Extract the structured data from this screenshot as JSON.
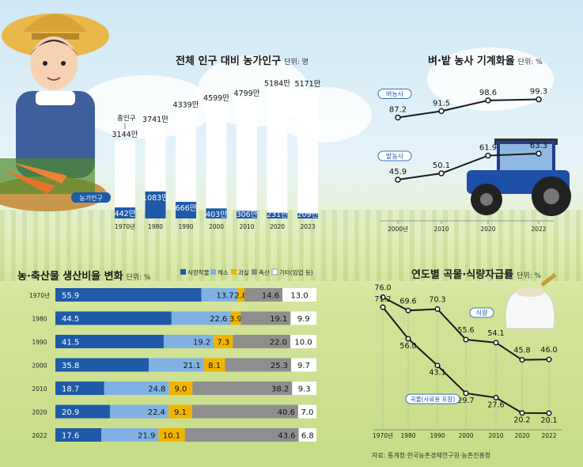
{
  "titles": {
    "pop_title": "전체 인구 대비 농가인구",
    "pop_unit": "단위: 명",
    "mech_title": "벼·밭 농사 기계화율",
    "mech_unit": "단위: %",
    "prod_title": "농·축산물 생산비율 변화",
    "prod_unit": "단위: %",
    "self_title": "연도별 곡물·식량자급률",
    "self_unit": "단위: %"
  },
  "source": "자료: 통계청·한국농촌경제연구원·농촌진흥청",
  "colors": {
    "total_bar": "#ffffff",
    "farm_bar": "#1e5aa8",
    "rice_line": "#1a1a1a",
    "field_line": "#1a1a1a",
    "food_line": "#1a1a1a",
    "grain_line": "#1a1a1a",
    "crops": "#1e5aa8",
    "vegetables": "#7fb2e2",
    "fruits": "#f0b400",
    "livestock": "#8e8e8e",
    "others": "#ffffff"
  },
  "chart_data": [
    {
      "type": "bar",
      "title": "전체 인구 대비 농가인구",
      "categories": [
        "1970년",
        "1980",
        "1990",
        "2000",
        "2010",
        "2020",
        "2023"
      ],
      "series": [
        {
          "name": "총인구",
          "values": [
            3144,
            3741,
            4339,
            4599,
            4799,
            5184,
            5171
          ],
          "labels": [
            "3144만",
            "3741만",
            "4339만",
            "4599만",
            "4799만",
            "5184만",
            "5171만"
          ]
        },
        {
          "name": "농가인구",
          "values": [
            442,
            1083,
            666,
            403,
            306,
            231,
            209
          ],
          "labels": [
            "442만",
            "1083만",
            "666만",
            "403만",
            "306만",
            "231만",
            "209만"
          ]
        }
      ]
    },
    {
      "type": "line",
      "title": "벼·밭 농사 기계화율",
      "categories": [
        "2000년",
        "2010",
        "2020",
        "2022"
      ],
      "series": [
        {
          "name": "벼농사",
          "values": [
            87.2,
            91.5,
            98.6,
            99.3
          ]
        },
        {
          "name": "밭농사",
          "values": [
            45.9,
            50.1,
            61.9,
            63.3
          ]
        }
      ]
    },
    {
      "type": "bar",
      "title": "농·축산물 생산비율 변화",
      "categories": [
        "1970년",
        "1980",
        "1990",
        "2000",
        "2010",
        "2020",
        "2022"
      ],
      "series": [
        {
          "name": "식량작물",
          "values": [
            55.9,
            44.5,
            41.5,
            35.8,
            18.7,
            20.9,
            17.6
          ]
        },
        {
          "name": "채소",
          "values": [
            13.7,
            22.6,
            19.2,
            21.1,
            24.8,
            22.4,
            21.9
          ]
        },
        {
          "name": "과실",
          "values": [
            2.8,
            3.9,
            7.3,
            8.1,
            9.0,
            9.1,
            10.1
          ]
        },
        {
          "name": "축산",
          "values": [
            14.6,
            19.1,
            22.0,
            25.3,
            38.2,
            40.6,
            43.6
          ]
        },
        {
          "name": "기타(임업 등)",
          "values": [
            13.0,
            9.9,
            10.0,
            9.7,
            9.3,
            7.0,
            6.8
          ]
        }
      ]
    },
    {
      "type": "line",
      "title": "연도별 곡물·식량자급률",
      "categories": [
        "1970년",
        "1980",
        "1990",
        "2000",
        "2010",
        "2020",
        "2022"
      ],
      "series": [
        {
          "name": "식량",
          "values": [
            76.0,
            69.6,
            70.3,
            55.6,
            54.1,
            45.8,
            46.0
          ]
        },
        {
          "name": "곡물(사료용 포함)",
          "values": [
            71.2,
            56.0,
            43.1,
            29.7,
            27.6,
            20.2,
            20.1
          ]
        }
      ]
    }
  ]
}
